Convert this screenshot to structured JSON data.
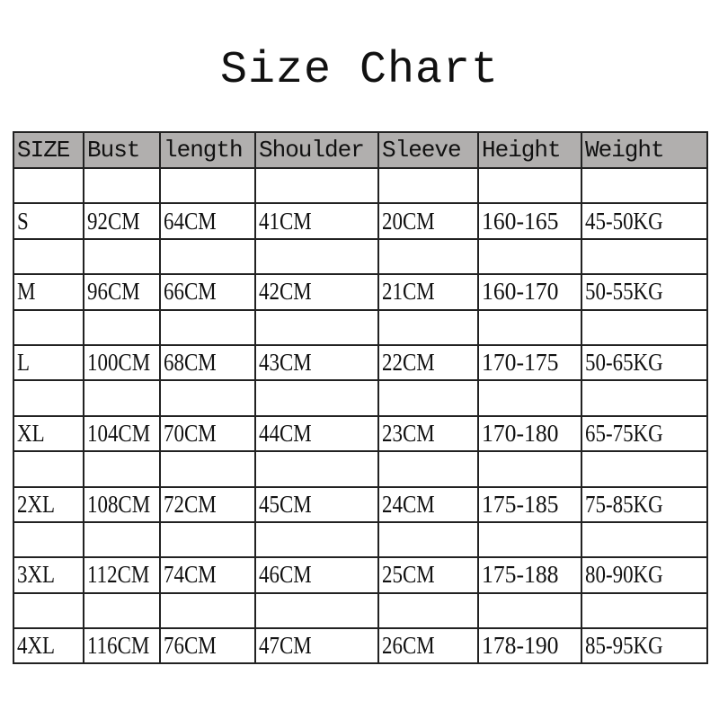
{
  "title": "Size Chart",
  "table": {
    "headers": [
      "SIZE",
      "Bust",
      "length",
      "Shoulder",
      "Sleeve",
      "Height",
      "Weight"
    ],
    "rows": [
      [
        "S",
        "92CM",
        "64CM",
        "41CM",
        "20CM",
        "160-165",
        "45-50KG"
      ],
      [
        "M",
        "96CM",
        "66CM",
        "42CM",
        "21CM",
        "160-170",
        "50-55KG"
      ],
      [
        "L",
        "100CM",
        "68CM",
        "43CM",
        "22CM",
        "170-175",
        "50-65KG"
      ],
      [
        "XL",
        "104CM",
        "70CM",
        "44CM",
        "23CM",
        "170-180",
        "65-75KG"
      ],
      [
        "2XL",
        "108CM",
        "72CM",
        "45CM",
        "24CM",
        "175-185",
        "75-85KG"
      ],
      [
        "3XL",
        "112CM",
        "74CM",
        "46CM",
        "25CM",
        "175-188",
        "80-90KG"
      ],
      [
        "4XL",
        "116CM",
        "76CM",
        "47CM",
        "26CM",
        "178-190",
        "85-95KG"
      ]
    ]
  },
  "colors": {
    "header_bg": "#b1afae",
    "border": "#222222"
  }
}
